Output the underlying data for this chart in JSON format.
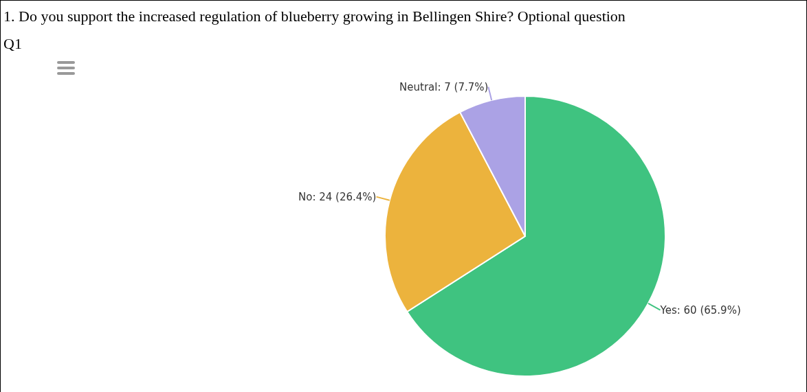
{
  "chart_data": {
    "type": "pie",
    "title": "1. Do you support the increased regulation of blueberry growing in Bellingen Shire? Optional question",
    "subtitle": "Q1",
    "categories": [
      "Yes",
      "No",
      "Neutral"
    ],
    "values": [
      60,
      24,
      7
    ],
    "colors": [
      "#3fc380",
      "#ecb33d",
      "#aba2e5"
    ],
    "value_labels": [
      "60 (65.9%)",
      "24 (26.4%)",
      "7 (7.7%)"
    ]
  }
}
